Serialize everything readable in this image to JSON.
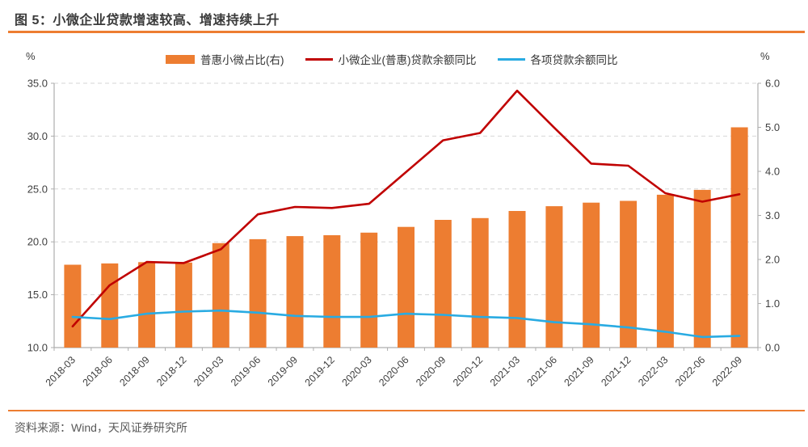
{
  "header": {
    "title": "图 5：小微企业贷款增速较高、增速持续上升"
  },
  "footer": {
    "source": "资料来源：Wind，天风证券研究所"
  },
  "colors": {
    "orange": "#ED7D31",
    "red": "#C00000",
    "blue": "#29ABE2",
    "grid": "#D6D6D6",
    "axis": "#ADADAD",
    "text": "#3f3f3f",
    "muted": "#595959",
    "rule": "#ED7D31"
  },
  "chart_data": {
    "type": "bar",
    "subtype": "combo bar+line, dual axis",
    "title": "图 5：小微企业贷款增速较高、增速持续上升",
    "categories": [
      "2018-03",
      "2018-06",
      "2018-09",
      "2018-12",
      "2019-03",
      "2019-06",
      "2019-09",
      "2019-12",
      "2020-03",
      "2020-06",
      "2020-09",
      "2020-12",
      "2021-03",
      "2021-06",
      "2021-09",
      "2021-12",
      "2022-03",
      "2022-06",
      "2022-09"
    ],
    "series": [
      {
        "name": "普惠小微占比(右)",
        "type": "bar",
        "axis": "right",
        "color": "#ED7D31",
        "values": [
          1.88,
          1.91,
          1.94,
          1.93,
          2.37,
          2.46,
          2.53,
          2.55,
          2.61,
          2.74,
          2.9,
          2.94,
          3.1,
          3.21,
          3.29,
          3.33,
          3.47,
          3.58,
          5.0
        ]
      },
      {
        "name": "小微企业(普惠)贷款余额同比",
        "type": "line",
        "axis": "left",
        "color": "#C00000",
        "values": [
          12.0,
          15.9,
          18.1,
          18.0,
          19.3,
          22.6,
          23.3,
          23.2,
          23.6,
          26.6,
          29.6,
          30.3,
          34.3,
          30.8,
          27.4,
          27.2,
          24.6,
          23.8,
          24.5
        ]
      },
      {
        "name": "各项贷款余额同比",
        "type": "line",
        "axis": "left",
        "color": "#29ABE2",
        "values": [
          12.9,
          12.7,
          13.2,
          13.4,
          13.5,
          13.3,
          13.0,
          12.9,
          12.9,
          13.2,
          13.1,
          12.9,
          12.8,
          12.4,
          12.2,
          11.9,
          11.5,
          11.0,
          11.1
        ]
      }
    ],
    "left_axis": {
      "unit": "%",
      "min": 10,
      "max": 35,
      "step": 5,
      "tick_labels": [
        "10.0",
        "15.0",
        "20.0",
        "25.0",
        "30.0",
        "35.0"
      ]
    },
    "right_axis": {
      "unit": "%",
      "min": 0,
      "max": 6,
      "step": 1,
      "tick_labels": [
        "0.0",
        "1.0",
        "2.0",
        "3.0",
        "4.0",
        "5.0",
        "6.0"
      ]
    },
    "grid": "horizontal dashed, at left-axis ticks",
    "legend_position": "top"
  }
}
